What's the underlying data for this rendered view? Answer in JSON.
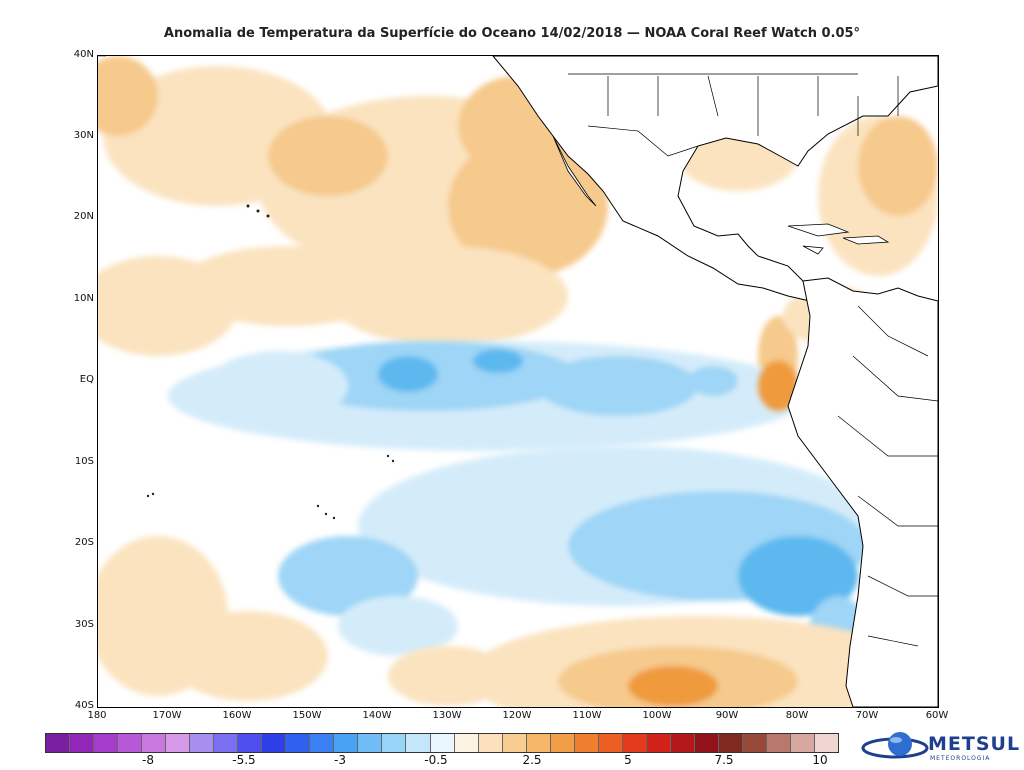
{
  "title": "Anomalia de Temperatura da Superfície do Oceano 14/02/2018 — NOAA Coral Reef Watch 0.05°",
  "lat_labels": [
    "40N",
    "30N",
    "20N",
    "10N",
    "EQ",
    "10S",
    "20S",
    "30S",
    "40S"
  ],
  "lon_labels": [
    "180",
    "170W",
    "160W",
    "150W",
    "140W",
    "130W",
    "120W",
    "110W",
    "100W",
    "90W",
    "80W",
    "70W",
    "60W"
  ],
  "colorbar": {
    "colors": [
      "#7a1fa2",
      "#9226b8",
      "#a63ccc",
      "#b758d8",
      "#c978e0",
      "#d79aea",
      "#a78ff0",
      "#7a6ef2",
      "#4f4ff0",
      "#2f3fe8",
      "#2f60f0",
      "#3a80f2",
      "#4aa2f5",
      "#6fbcf6",
      "#98d3f8",
      "#c3e6fa",
      "#e9f6fd",
      "#fdf3e3",
      "#fbe2bd",
      "#f8cd92",
      "#f5b66a",
      "#f29d47",
      "#ef7f2f",
      "#ec5e24",
      "#e43a1c",
      "#d02218",
      "#b5181a",
      "#92121a",
      "#7e2a20",
      "#97493a",
      "#b8786c",
      "#d7a8a0",
      "#f0d6d3"
    ],
    "tick_labels": [
      "-8",
      "-5.5",
      "-3",
      "-0.5",
      "2.5",
      "5",
      "7.5",
      "10"
    ],
    "tick_values": [
      -8,
      -5.5,
      -3,
      -0.5,
      2.5,
      5,
      7.5,
      10
    ]
  },
  "colors": {
    "land": "#ffffff",
    "cool_light": "#d4ecfa",
    "cool_mid": "#9fd5f6",
    "cool_strong": "#5cb8ef",
    "warm_light": "#fbe3bf",
    "warm_mid": "#f6c98c",
    "warm_strong": "#ef9a3c",
    "hot": "#c8321d"
  },
  "logo": {
    "name": "METSUL",
    "subtitle": "METEOROLOGIA"
  }
}
